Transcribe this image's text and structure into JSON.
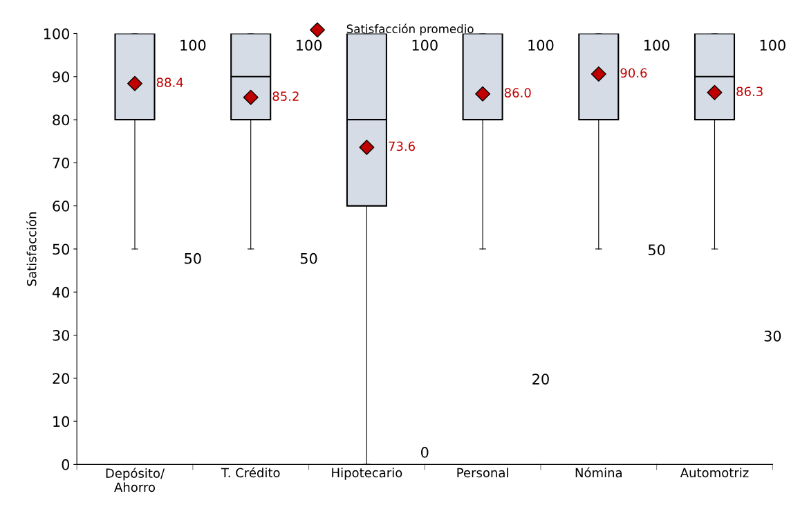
{
  "chart_data": {
    "type": "box",
    "ylabel": "Satisfacción",
    "categories": [
      "Depósito/\nAhorro",
      "T. Crédito",
      "Hipotecario",
      "Personal",
      "Nómina",
      "Automotriz"
    ],
    "ylim": [
      0,
      100
    ],
    "yticks": [
      0,
      10,
      20,
      30,
      40,
      50,
      60,
      70,
      80,
      90,
      100
    ],
    "grid": false,
    "legend": "top",
    "series": [
      {
        "type": "box",
        "color": "#d6dce5",
        "boxes": [
          {
            "low": 50,
            "q1": 80,
            "median": 80,
            "q3": 100,
            "high": 100
          },
          {
            "low": 50,
            "q1": 80,
            "median": 90,
            "q3": 100,
            "high": 100
          },
          {
            "low": 0,
            "q1": 60,
            "median": 80,
            "q3": 100,
            "high": 100
          },
          {
            "low": 50,
            "q1": 80,
            "median": 80,
            "q3": 100,
            "high": 100
          },
          {
            "low": 50,
            "q1": 80,
            "median": 80,
            "q3": 100,
            "high": 100
          },
          {
            "low": 50,
            "q1": 80,
            "median": 90,
            "q3": 100,
            "high": 100
          }
        ]
      },
      {
        "type": "scatter",
        "name": "Satisfacción promedio",
        "color": "#c00000",
        "marker": "diamond",
        "x": [
          "Depósito/\nAhorro",
          "T. Crédito",
          "Hipotecario",
          "Personal",
          "Nómina",
          "Automotriz"
        ],
        "values": [
          88.4,
          85.2,
          73.6,
          86.0,
          90.6,
          86.3
        ],
        "value_labels": [
          "88.4",
          "85.2",
          "73.6",
          "86.0",
          "90.6",
          "86.3"
        ]
      }
    ],
    "annotations": [
      "100",
      "100",
      "100",
      "100",
      "100",
      "100",
      "50",
      "50",
      "0",
      "20",
      "50",
      "30"
    ]
  }
}
